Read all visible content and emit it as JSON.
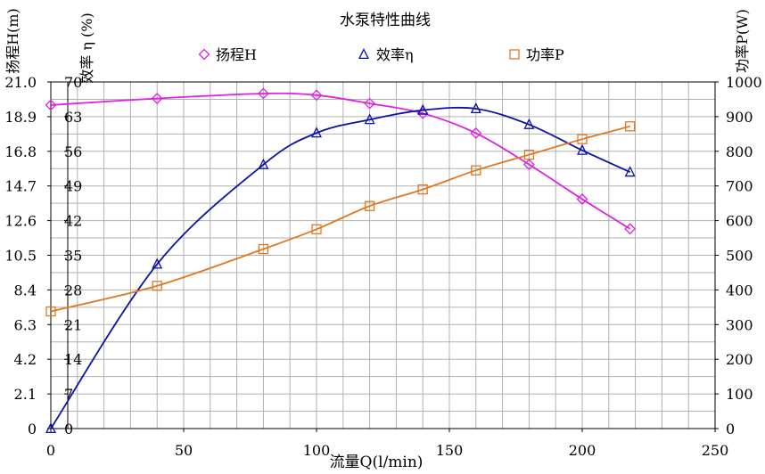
{
  "chart_data": {
    "type": "line",
    "title": "水泵特性曲线",
    "xlabel": "流量Q(l/min)",
    "xlim": [
      0,
      250
    ],
    "x_ticks": [
      "0",
      "50",
      "100",
      "150",
      "200",
      "250"
    ],
    "grid": true,
    "legend_position": "top",
    "axes": {
      "left_outer": {
        "label": "扬程H(m)",
        "range": [
          0,
          21.0
        ],
        "ticks": [
          "0",
          "2.1",
          "4.2",
          "6.3",
          "8.4",
          "10.5",
          "12.6",
          "14.7",
          "16.8",
          "18.9",
          "21.0"
        ]
      },
      "left_inner": {
        "label": "效率 η (%)",
        "range": [
          0,
          70
        ],
        "ticks": [
          "0",
          "7",
          "14",
          "21",
          "28",
          "35",
          "42",
          "49",
          "56",
          "63",
          "70"
        ]
      },
      "right": {
        "label": "功率P(W)",
        "range": [
          0,
          1000
        ],
        "ticks": [
          "0",
          "100",
          "200",
          "300",
          "400",
          "500",
          "600",
          "700",
          "800",
          "900",
          "1000"
        ]
      }
    },
    "series": [
      {
        "name": "扬程H",
        "axis": "left_outer",
        "color": "#E020E0",
        "marker": "diamond",
        "x": [
          0,
          40,
          80,
          100,
          120,
          140,
          160,
          180,
          200,
          218
        ],
        "y": [
          19.6,
          20.0,
          20.3,
          20.2,
          19.7,
          19.1,
          17.9,
          16.0,
          13.9,
          12.1
        ]
      },
      {
        "name": "效率η",
        "axis": "left_inner",
        "color": "#0A14A0",
        "marker": "triangle",
        "x": [
          0,
          40,
          80,
          100,
          120,
          140,
          160,
          180,
          200,
          218
        ],
        "y": [
          0,
          33.2,
          53.3,
          59.7,
          62.4,
          64.3,
          64.6,
          61.4,
          56.2,
          51.8
        ]
      },
      {
        "name": "功率P",
        "axis": "right",
        "color": "#E07820",
        "marker": "square",
        "x": [
          0,
          40,
          80,
          100,
          120,
          140,
          160,
          180,
          200,
          218
        ],
        "y": [
          338,
          412,
          518,
          575,
          642,
          690,
          745,
          790,
          835,
          872
        ]
      }
    ]
  }
}
